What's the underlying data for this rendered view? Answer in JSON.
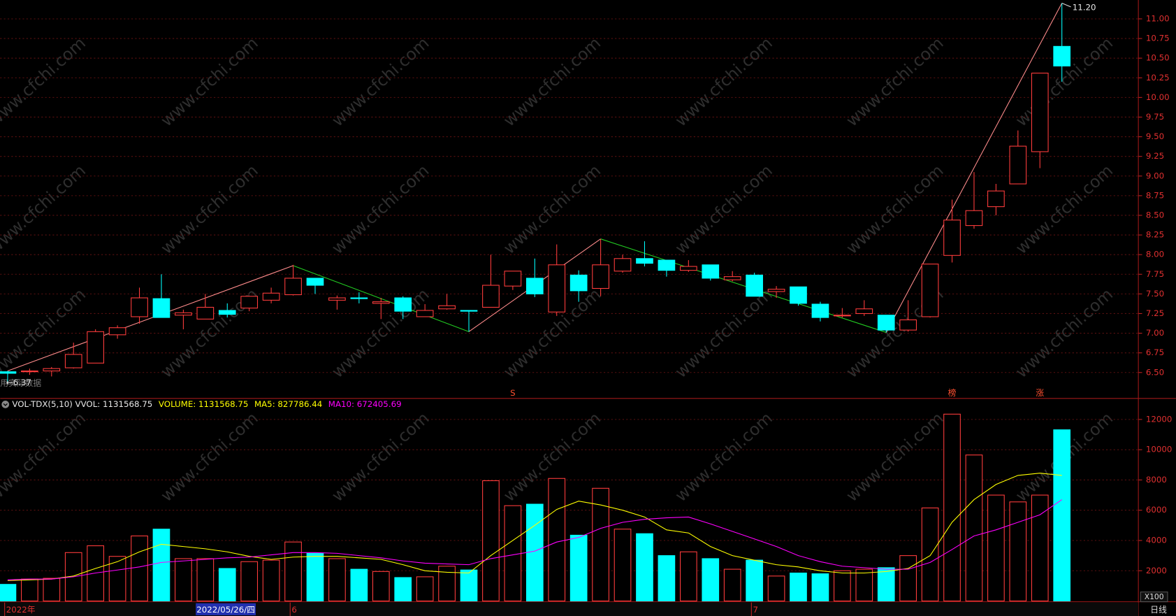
{
  "chart_data": [
    {
      "type": "candlestick",
      "up_color": "#ff3c3c",
      "down_color": "#00ffff",
      "grid": true,
      "categories": [
        "2022年",
        null,
        null,
        null,
        null,
        null,
        null,
        null,
        null,
        null,
        "2022/05/26/四",
        null,
        null,
        "6",
        null,
        null,
        null,
        null,
        null,
        null,
        null,
        null,
        null,
        null,
        null,
        null,
        null,
        null,
        null,
        null,
        null,
        null,
        null,
        null,
        "7",
        null,
        null,
        null,
        null,
        null,
        null,
        null,
        null,
        null,
        null,
        null,
        null,
        null,
        null
      ],
      "open": [
        6.51,
        6.51,
        6.52,
        6.56,
        6.62,
        6.98,
        7.21,
        7.44,
        7.23,
        7.18,
        7.29,
        7.32,
        7.42,
        7.49,
        7.7,
        7.42,
        7.45,
        7.38,
        7.45,
        7.21,
        7.31,
        7.29,
        7.33,
        7.6,
        7.7,
        7.27,
        7.74,
        7.57,
        7.79,
        7.95,
        7.93,
        7.8,
        7.87,
        7.68,
        7.74,
        7.53,
        7.59,
        7.37,
        7.22,
        7.25,
        7.23,
        7.04,
        7.21,
        7.99,
        8.37,
        8.61,
        8.9,
        9.31,
        10.65
      ],
      "high": [
        6.52,
        6.55,
        6.57,
        6.88,
        7.05,
        7.1,
        7.58,
        7.75,
        7.3,
        7.5,
        7.38,
        7.47,
        7.58,
        7.87,
        7.7,
        7.48,
        7.52,
        7.45,
        7.47,
        7.37,
        7.5,
        7.29,
        8.0,
        7.79,
        7.95,
        8.13,
        7.8,
        8.2,
        8.0,
        8.17,
        7.93,
        7.93,
        7.87,
        7.79,
        7.77,
        7.6,
        7.59,
        7.4,
        7.32,
        7.42,
        7.23,
        7.42,
        7.88,
        8.7,
        9.05,
        8.9,
        9.58,
        10.31,
        11.2
      ],
      "low": [
        6.37,
        6.47,
        6.45,
        6.55,
        6.62,
        6.93,
        7.12,
        7.2,
        7.05,
        7.18,
        7.2,
        7.28,
        7.38,
        7.48,
        7.5,
        7.3,
        7.38,
        7.18,
        7.18,
        7.21,
        7.3,
        7.02,
        7.33,
        7.55,
        7.46,
        7.22,
        7.4,
        7.47,
        7.77,
        7.85,
        7.72,
        7.78,
        7.67,
        7.66,
        7.47,
        7.45,
        7.35,
        7.15,
        7.2,
        7.22,
        7.01,
        7.02,
        7.2,
        7.9,
        8.33,
        8.5,
        8.9,
        9.1,
        10.2
      ],
      "close": [
        6.49,
        6.52,
        6.55,
        6.73,
        7.02,
        7.07,
        7.45,
        7.2,
        7.26,
        7.33,
        7.24,
        7.47,
        7.51,
        7.7,
        7.61,
        7.45,
        7.44,
        7.4,
        7.28,
        7.29,
        7.35,
        7.28,
        7.61,
        7.79,
        7.5,
        7.87,
        7.54,
        7.87,
        7.95,
        7.89,
        7.8,
        7.85,
        7.7,
        7.72,
        7.47,
        7.56,
        7.38,
        7.2,
        7.23,
        7.31,
        7.04,
        7.17,
        7.88,
        8.44,
        8.56,
        8.81,
        9.38,
        10.31,
        10.4
      ],
      "zigzag": {
        "x": [
          0,
          13,
          21,
          27,
          40,
          48
        ],
        "values": [
          6.52,
          7.86,
          7.02,
          8.2,
          7.01,
          11.2
        ],
        "up_color": "#ff8c8c",
        "down_color": "#22cc22"
      },
      "signals": [
        null,
        null,
        null,
        null,
        null,
        null,
        null,
        null,
        null,
        null,
        null,
        null,
        null,
        null,
        null,
        null,
        null,
        null,
        null,
        null,
        null,
        null,
        null,
        "S",
        null,
        null,
        null,
        null,
        null,
        null,
        null,
        null,
        null,
        null,
        null,
        null,
        null,
        null,
        null,
        null,
        null,
        null,
        null,
        "榜",
        null,
        null,
        null,
        "涨",
        null
      ],
      "max_label": "11.20",
      "min_label": "←6.37",
      "note": "用实际数据",
      "ylim": [
        6.18,
        11.24
      ],
      "yticks": [
        {
          "value": 6.5,
          "label": "6.50"
        },
        {
          "value": 6.75,
          "label": "6.75"
        },
        {
          "value": 7,
          "label": "7.00"
        },
        {
          "value": 7.25,
          "label": "7.25"
        },
        {
          "value": 7.5,
          "label": "7.50"
        },
        {
          "value": 7.75,
          "label": "7.75"
        },
        {
          "value": 8,
          "label": "8.00"
        },
        {
          "value": 8.25,
          "label": "8.25"
        },
        {
          "value": 8.5,
          "label": "8.50"
        },
        {
          "value": 8.75,
          "label": "8.75"
        },
        {
          "value": 9,
          "label": "9.00"
        },
        {
          "value": 9.25,
          "label": "9.25"
        },
        {
          "value": 9.5,
          "label": "9.50"
        },
        {
          "value": 9.75,
          "label": "9.75"
        },
        {
          "value": 10,
          "label": "10.00"
        },
        {
          "value": 10.25,
          "label": "10.25"
        },
        {
          "value": 10.5,
          "label": "10.50"
        },
        {
          "value": 10.75,
          "label": "10.75"
        },
        {
          "value": 11,
          "label": "11.00"
        }
      ]
    },
    {
      "type": "bar",
      "title": "VOL-TDX(5,10)",
      "legend": [
        {
          "text": "VVOL: 1131568.75",
          "color": "#e8e8e8"
        },
        {
          "text": "VOLUME: 1131568.75",
          "color": "#ffff00"
        },
        {
          "text": "MA5: 827786.44",
          "color": "#ffff00"
        },
        {
          "text": "MA10: 672405.69",
          "color": "#ff00ff"
        }
      ],
      "series": [
        {
          "name": "VOLUME",
          "values": [
            1100,
            1450,
            1500,
            3200,
            3650,
            2950,
            4300,
            4750,
            2800,
            2800,
            2150,
            2600,
            2700,
            3900,
            3150,
            2800,
            2100,
            1950,
            1550,
            1600,
            2300,
            2050,
            7950,
            6300,
            6400,
            8100,
            4350,
            7450,
            4750,
            4450,
            3000,
            3250,
            2800,
            2100,
            2700,
            1650,
            1850,
            1800,
            2000,
            2100,
            2200,
            3000,
            6150,
            12350,
            9650,
            7000,
            6550,
            7000,
            11315.69
          ]
        },
        {
          "name": "MA5",
          "color": "#ffff00",
          "values": [
            1350,
            1400,
            1450,
            1650,
            2150,
            2600,
            3250,
            3750,
            3600,
            3450,
            3250,
            2950,
            2750,
            2900,
            2950,
            2950,
            2850,
            2750,
            2400,
            2000,
            1900,
            1850,
            3000,
            4000,
            5000,
            6050,
            6600,
            6350,
            6000,
            5550,
            4700,
            4500,
            3600,
            3000,
            2700,
            2400,
            2250,
            2000,
            1850,
            1850,
            1950,
            2150,
            3000,
            5200,
            6700,
            7700,
            8300,
            8450,
            8300
          ]
        },
        {
          "name": "MA10",
          "color": "#ff00ff",
          "values": [
            1400,
            1450,
            1450,
            1600,
            1850,
            2050,
            2250,
            2550,
            2650,
            2750,
            2850,
            2900,
            3050,
            3200,
            3200,
            3150,
            3000,
            2850,
            2650,
            2500,
            2450,
            2400,
            2800,
            3050,
            3300,
            3900,
            4200,
            4800,
            5200,
            5400,
            5500,
            5550,
            5100,
            4600,
            4100,
            3600,
            3000,
            2600,
            2300,
            2200,
            2100,
            2100,
            2550,
            3400,
            4300,
            4700,
            5200,
            5700,
            6700
          ]
        }
      ],
      "unit": "X100",
      "period": "日线",
      "watermark": "www.cfchi.com",
      "ylim": [
        0,
        13340
      ],
      "yticks": [
        2000,
        4000,
        6000,
        8000,
        10000,
        12000
      ]
    }
  ]
}
